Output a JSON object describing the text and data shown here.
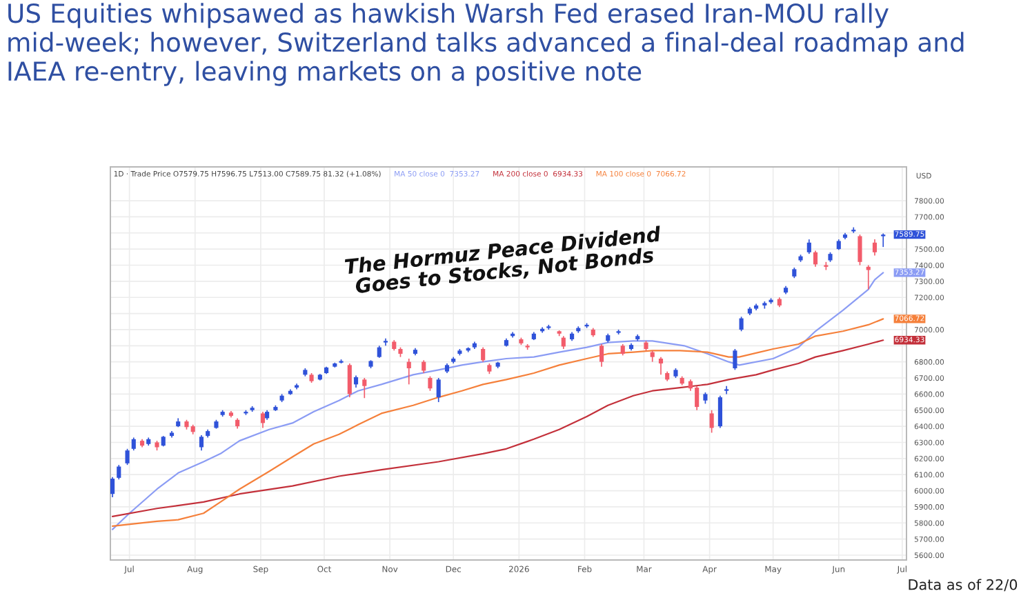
{
  "chart_data": {
    "type": "candlestick",
    "title": "US Equities whipsawed as hawkish Warsh Fed erased Iran-MOU rally mid-week; however, Switzerland talks advanced a final-deal roadmap and IAEA re-entry, leaving markets on a positive note",
    "ylabel": "USD",
    "x": [
      "2025-06-23",
      "2025-06-26",
      "2025-06-30",
      "2025-07-03",
      "2025-07-07",
      "2025-07-10",
      "2025-07-14",
      "2025-07-17",
      "2025-07-21",
      "2025-07-24",
      "2025-07-28",
      "2025-07-31",
      "2025-08-04",
      "2025-08-07",
      "2025-08-11",
      "2025-08-14",
      "2025-08-18",
      "2025-08-21",
      "2025-08-25",
      "2025-08-28",
      "2025-09-02",
      "2025-09-04",
      "2025-09-08",
      "2025-09-11",
      "2025-09-15",
      "2025-09-18",
      "2025-09-22",
      "2025-09-25",
      "2025-09-29",
      "2025-10-02",
      "2025-10-06",
      "2025-10-09",
      "2025-10-13",
      "2025-10-16",
      "2025-10-20",
      "2025-10-23",
      "2025-10-27",
      "2025-10-30",
      "2025-11-03",
      "2025-11-06",
      "2025-11-10",
      "2025-11-13",
      "2025-11-17",
      "2025-11-20",
      "2025-11-24",
      "2025-11-28",
      "2025-12-01",
      "2025-12-04",
      "2025-12-08",
      "2025-12-11",
      "2025-12-15",
      "2025-12-18",
      "2025-12-22",
      "2025-12-26",
      "2025-12-29",
      "2026-01-02",
      "2026-01-05",
      "2026-01-08",
      "2026-01-12",
      "2026-01-15",
      "2026-01-20",
      "2026-01-22",
      "2026-01-26",
      "2026-01-29",
      "2026-02-02",
      "2026-02-05",
      "2026-02-09",
      "2026-02-12",
      "2026-02-17",
      "2026-02-19",
      "2026-02-23",
      "2026-02-26",
      "2026-03-02",
      "2026-03-05",
      "2026-03-09",
      "2026-03-12",
      "2026-03-16",
      "2026-03-19",
      "2026-03-23",
      "2026-03-26",
      "2026-03-30",
      "2026-04-02",
      "2026-04-06",
      "2026-04-09",
      "2026-04-13",
      "2026-04-16",
      "2026-04-20",
      "2026-04-23",
      "2026-04-27",
      "2026-04-30",
      "2026-05-04",
      "2026-05-07",
      "2026-05-11",
      "2026-05-14",
      "2026-05-18",
      "2026-05-21",
      "2026-05-26",
      "2026-05-28",
      "2026-06-01",
      "2026-06-04",
      "2026-06-08",
      "2026-06-11",
      "2026-06-15",
      "2026-06-18",
      "2026-06-22"
    ],
    "ohlc": [
      [
        5980,
        6085,
        5960,
        6075
      ],
      [
        6080,
        6160,
        6070,
        6150
      ],
      [
        6170,
        6260,
        6160,
        6250
      ],
      [
        6260,
        6330,
        6250,
        6320
      ],
      [
        6310,
        6320,
        6270,
        6280
      ],
      [
        6290,
        6330,
        6280,
        6320
      ],
      [
        6300,
        6310,
        6250,
        6270
      ],
      [
        6280,
        6340,
        6275,
        6335
      ],
      [
        6340,
        6370,
        6330,
        6360
      ],
      [
        6400,
        6450,
        6395,
        6430
      ],
      [
        6430,
        6440,
        6380,
        6395
      ],
      [
        6400,
        6410,
        6350,
        6365
      ],
      [
        6270,
        6345,
        6250,
        6335
      ],
      [
        6340,
        6380,
        6330,
        6370
      ],
      [
        6390,
        6440,
        6385,
        6430
      ],
      [
        6470,
        6500,
        6460,
        6490
      ],
      [
        6485,
        6495,
        6455,
        6465
      ],
      [
        6440,
        6450,
        6385,
        6400
      ],
      [
        6480,
        6500,
        6470,
        6490
      ],
      [
        6500,
        6525,
        6490,
        6515
      ],
      [
        6480,
        6490,
        6390,
        6420
      ],
      [
        6450,
        6500,
        6440,
        6490
      ],
      [
        6500,
        6530,
        6495,
        6520
      ],
      [
        6560,
        6600,
        6550,
        6590
      ],
      [
        6600,
        6630,
        6595,
        6620
      ],
      [
        6640,
        6665,
        6630,
        6655
      ],
      [
        6720,
        6760,
        6710,
        6750
      ],
      [
        6720,
        6730,
        6670,
        6680
      ],
      [
        6690,
        6725,
        6685,
        6720
      ],
      [
        6730,
        6770,
        6725,
        6765
      ],
      [
        6770,
        6795,
        6765,
        6790
      ],
      [
        6795,
        6815,
        6790,
        6805
      ],
      [
        6780,
        6790,
        6580,
        6600
      ],
      [
        6660,
        6715,
        6640,
        6705
      ],
      [
        6690,
        6700,
        6575,
        6650
      ],
      [
        6770,
        6810,
        6760,
        6805
      ],
      [
        6830,
        6900,
        6825,
        6890
      ],
      [
        6920,
        6945,
        6900,
        6930
      ],
      [
        6925,
        6935,
        6870,
        6880
      ],
      [
        6880,
        6890,
        6830,
        6850
      ],
      [
        6800,
        6820,
        6660,
        6760
      ],
      [
        6850,
        6885,
        6840,
        6875
      ],
      [
        6800,
        6810,
        6730,
        6745
      ],
      [
        6700,
        6710,
        6620,
        6635
      ],
      [
        6580,
        6700,
        6550,
        6690
      ],
      [
        6740,
        6790,
        6730,
        6780
      ],
      [
        6800,
        6830,
        6790,
        6820
      ],
      [
        6850,
        6880,
        6840,
        6870
      ],
      [
        6870,
        6890,
        6860,
        6885
      ],
      [
        6890,
        6925,
        6880,
        6915
      ],
      [
        6880,
        6890,
        6800,
        6810
      ],
      [
        6780,
        6790,
        6725,
        6740
      ],
      [
        6770,
        6800,
        6760,
        6795
      ],
      [
        6900,
        6945,
        6895,
        6935
      ],
      [
        6960,
        6985,
        6950,
        6975
      ],
      [
        6940,
        6950,
        6905,
        6915
      ],
      [
        6900,
        6910,
        6875,
        6890
      ],
      [
        6940,
        6985,
        6935,
        6975
      ],
      [
        6990,
        7015,
        6980,
        7005
      ],
      [
        7010,
        7030,
        7000,
        7020
      ],
      [
        6990,
        6995,
        6960,
        6975
      ],
      [
        6950,
        6960,
        6880,
        6895
      ],
      [
        6940,
        6985,
        6930,
        6975
      ],
      [
        6990,
        7020,
        6980,
        7010
      ],
      [
        7020,
        7040,
        7010,
        7030
      ],
      [
        7000,
        7010,
        6955,
        6965
      ],
      [
        6900,
        6910,
        6770,
        6800
      ],
      [
        6930,
        6975,
        6920,
        6965
      ],
      [
        6980,
        7000,
        6970,
        6990
      ],
      [
        6900,
        6910,
        6840,
        6850
      ],
      [
        6880,
        6915,
        6870,
        6905
      ],
      [
        6940,
        6970,
        6930,
        6960
      ],
      [
        6920,
        6930,
        6870,
        6880
      ],
      [
        6860,
        6870,
        6800,
        6830
      ],
      [
        6820,
        6830,
        6720,
        6790
      ],
      [
        6730,
        6740,
        6680,
        6690
      ],
      [
        6710,
        6760,
        6700,
        6750
      ],
      [
        6700,
        6710,
        6655,
        6665
      ],
      [
        6680,
        6690,
        6620,
        6635
      ],
      [
        6640,
        6650,
        6500,
        6520
      ],
      [
        6560,
        6610,
        6540,
        6600
      ],
      [
        6480,
        6500,
        6360,
        6390
      ],
      [
        6400,
        6590,
        6390,
        6580
      ],
      [
        6620,
        6650,
        6600,
        6630
      ],
      [
        6760,
        6880,
        6750,
        6870
      ],
      [
        7000,
        7080,
        6990,
        7070
      ],
      [
        7100,
        7140,
        7090,
        7130
      ],
      [
        7130,
        7160,
        7120,
        7150
      ],
      [
        7150,
        7175,
        7130,
        7165
      ],
      [
        7170,
        7195,
        7160,
        7185
      ],
      [
        7190,
        7200,
        7140,
        7150
      ],
      [
        7230,
        7270,
        7220,
        7260
      ],
      [
        7330,
        7385,
        7320,
        7375
      ],
      [
        7430,
        7465,
        7420,
        7455
      ],
      [
        7480,
        7560,
        7470,
        7540
      ],
      [
        7480,
        7490,
        7390,
        7405
      ],
      [
        7400,
        7420,
        7370,
        7390
      ],
      [
        7430,
        7480,
        7420,
        7470
      ],
      [
        7500,
        7560,
        7495,
        7550
      ],
      [
        7570,
        7600,
        7560,
        7590
      ],
      [
        7610,
        7635,
        7600,
        7620
      ],
      [
        7580,
        7590,
        7400,
        7420
      ],
      [
        7390,
        7400,
        7250,
        7370
      ],
      [
        7540,
        7560,
        7460,
        7480
      ],
      [
        7579.75,
        7596.75,
        7513.0,
        7589.75
      ]
    ],
    "colors": [
      "#2f52d9",
      "#2f52d9",
      "#2f52d9",
      "#2f52d9",
      "#f25c6b",
      "#2f52d9",
      "#f25c6b",
      "#2f52d9",
      "#2f52d9",
      "#2f52d9",
      "#f25c6b",
      "#f25c6b",
      "#2f52d9",
      "#2f52d9",
      "#2f52d9",
      "#2f52d9",
      "#f25c6b",
      "#f25c6b",
      "#2f52d9",
      "#2f52d9",
      "#f25c6b",
      "#2f52d9",
      "#2f52d9",
      "#2f52d9",
      "#2f52d9",
      "#2f52d9",
      "#2f52d9",
      "#f25c6b",
      "#2f52d9",
      "#2f52d9",
      "#2f52d9",
      "#2f52d9",
      "#f25c6b",
      "#2f52d9",
      "#f25c6b",
      "#2f52d9",
      "#2f52d9",
      "#2f52d9",
      "#f25c6b",
      "#f25c6b",
      "#f25c6b",
      "#2f52d9",
      "#f25c6b",
      "#f25c6b",
      "#2f52d9",
      "#2f52d9",
      "#2f52d9",
      "#2f52d9",
      "#2f52d9",
      "#2f52d9",
      "#f25c6b",
      "#f25c6b",
      "#2f52d9",
      "#2f52d9",
      "#2f52d9",
      "#f25c6b",
      "#f25c6b",
      "#2f52d9",
      "#2f52d9",
      "#2f52d9",
      "#f25c6b",
      "#f25c6b",
      "#2f52d9",
      "#2f52d9",
      "#2f52d9",
      "#f25c6b",
      "#f25c6b",
      "#2f52d9",
      "#2f52d9",
      "#f25c6b",
      "#2f52d9",
      "#2f52d9",
      "#f25c6b",
      "#f25c6b",
      "#f25c6b",
      "#f25c6b",
      "#2f52d9",
      "#f25c6b",
      "#f25c6b",
      "#f25c6b",
      "#2f52d9",
      "#f25c6b",
      "#2f52d9",
      "#2f52d9",
      "#2f52d9",
      "#2f52d9",
      "#2f52d9",
      "#2f52d9",
      "#2f52d9",
      "#2f52d9",
      "#f25c6b",
      "#2f52d9",
      "#2f52d9",
      "#2f52d9",
      "#2f52d9",
      "#f25c6b",
      "#f25c6b",
      "#2f52d9",
      "#2f52d9",
      "#2f52d9",
      "#2f52d9",
      "#f25c6b",
      "#f25c6b",
      "#f25c6b",
      "#2f52d9"
    ],
    "value_labels": [
      null,
      null,
      null,
      null,
      null,
      null,
      null,
      null,
      null,
      null,
      null,
      null,
      null,
      null,
      null,
      null,
      null,
      null,
      null,
      null,
      null,
      null,
      null,
      null,
      null,
      null,
      null,
      null,
      null,
      null,
      null,
      null,
      null,
      null,
      null,
      null,
      null,
      null,
      null,
      null,
      null,
      null,
      null,
      null,
      null,
      null,
      null,
      null,
      null,
      null,
      null,
      null,
      null,
      null,
      null,
      null,
      null,
      null,
      null,
      null,
      null,
      null,
      null,
      null,
      null,
      null,
      null,
      null,
      null,
      null,
      null,
      null,
      null,
      null,
      null,
      null,
      null,
      null,
      null,
      null,
      null,
      null,
      null,
      null,
      null,
      null,
      null,
      null,
      null,
      null,
      null,
      null,
      null,
      null,
      null,
      null,
      null,
      null,
      null,
      null,
      null,
      null,
      null,
      null,
      "7589.75"
    ],
    "series": [
      {
        "name": "MA 50 close 0",
        "type": "line",
        "color": "#8b9cf4",
        "x": [
          "2025-06-23",
          "2025-07-01",
          "2025-07-14",
          "2025-07-24",
          "2025-08-05",
          "2025-08-13",
          "2025-08-22",
          "2025-09-05",
          "2025-09-16",
          "2025-09-26",
          "2025-10-08",
          "2025-10-17",
          "2025-10-28",
          "2025-11-12",
          "2025-11-24",
          "2025-12-05",
          "2025-12-15",
          "2025-12-26",
          "2026-01-08",
          "2026-01-20",
          "2026-02-02",
          "2026-02-12",
          "2026-02-24",
          "2026-03-05",
          "2026-03-20",
          "2026-03-31",
          "2026-04-10",
          "2026-04-15",
          "2026-05-01",
          "2026-05-13",
          "2026-05-21",
          "2026-06-03",
          "2026-06-15",
          "2026-06-18",
          "2026-06-22"
        ],
        "values": [
          5760,
          5860,
          6010,
          6110,
          6180,
          6230,
          6310,
          6380,
          6420,
          6490,
          6560,
          6620,
          6660,
          6720,
          6750,
          6780,
          6800,
          6820,
          6830,
          6860,
          6890,
          6920,
          6930,
          6930,
          6900,
          6850,
          6800,
          6780,
          6820,
          6890,
          6990,
          7120,
          7250,
          7310,
          7353.27
        ],
        "value_labels": [
          null,
          null,
          null,
          null,
          null,
          null,
          null,
          null,
          null,
          null,
          null,
          null,
          null,
          null,
          null,
          null,
          null,
          null,
          null,
          null,
          null,
          null,
          null,
          null,
          null,
          null,
          null,
          null,
          null,
          null,
          null,
          null,
          null,
          null,
          "7353.27"
        ]
      },
      {
        "name": "MA 200 close 0",
        "type": "line",
        "color": "#c3303a",
        "x": [
          "2025-06-23",
          "2025-07-14",
          "2025-08-05",
          "2025-08-22",
          "2025-09-16",
          "2025-10-08",
          "2025-10-28",
          "2025-11-24",
          "2025-12-15",
          "2025-12-26",
          "2026-01-08",
          "2026-01-20",
          "2026-02-02",
          "2026-02-12",
          "2026-02-24",
          "2026-03-05",
          "2026-03-18",
          "2026-03-31",
          "2026-04-10",
          "2026-04-23",
          "2026-05-01",
          "2026-05-13",
          "2026-05-21",
          "2026-06-03",
          "2026-06-15",
          "2026-06-22"
        ],
        "values": [
          5840,
          5890,
          5930,
          5980,
          6030,
          6090,
          6130,
          6180,
          6230,
          6260,
          6320,
          6380,
          6460,
          6530,
          6590,
          6620,
          6640,
          6660,
          6690,
          6720,
          6750,
          6790,
          6830,
          6870,
          6910,
          6934.33
        ],
        "value_labels": [
          null,
          null,
          null,
          null,
          null,
          null,
          null,
          null,
          null,
          null,
          null,
          null,
          null,
          null,
          null,
          null,
          null,
          null,
          null,
          null,
          null,
          null,
          null,
          null,
          null,
          "6934.33"
        ]
      },
      {
        "name": "MA 100 close 0",
        "type": "line",
        "color": "#f5803b",
        "x": [
          "2025-06-23",
          "2025-07-14",
          "2025-07-24",
          "2025-08-05",
          "2025-08-13",
          "2025-08-22",
          "2025-09-05",
          "2025-09-16",
          "2025-09-26",
          "2025-10-08",
          "2025-10-17",
          "2025-10-28",
          "2025-11-12",
          "2025-11-24",
          "2025-12-05",
          "2025-12-15",
          "2025-12-26",
          "2026-01-08",
          "2026-01-20",
          "2026-02-02",
          "2026-02-12",
          "2026-02-24",
          "2026-03-05",
          "2026-03-18",
          "2026-03-31",
          "2026-04-10",
          "2026-04-15",
          "2026-05-01",
          "2026-05-13",
          "2026-05-21",
          "2026-06-03",
          "2026-06-15",
          "2026-06-22"
        ],
        "values": [
          5780,
          5810,
          5820,
          5860,
          5930,
          6010,
          6120,
          6210,
          6290,
          6350,
          6410,
          6480,
          6530,
          6580,
          6620,
          6660,
          6690,
          6730,
          6780,
          6820,
          6850,
          6860,
          6870,
          6870,
          6860,
          6830,
          6830,
          6880,
          6910,
          6960,
          6990,
          7030,
          7066.72
        ],
        "value_labels": [
          null,
          null,
          null,
          null,
          null,
          null,
          null,
          null,
          null,
          null,
          null,
          null,
          null,
          null,
          null,
          null,
          null,
          null,
          null,
          null,
          null,
          null,
          null,
          null,
          null,
          null,
          null,
          null,
          null,
          null,
          null,
          null,
          "7066.72"
        ]
      }
    ],
    "xlim": [
      "2025-06-22",
      "2026-07-03"
    ],
    "xticks": [
      {
        "value": "2025-07-01",
        "label": "Jul"
      },
      {
        "value": "2025-08-01",
        "label": "Aug"
      },
      {
        "value": "2025-09-01",
        "label": "Sep"
      },
      {
        "value": "2025-10-01",
        "label": "Oct"
      },
      {
        "value": "2025-11-01",
        "label": "Nov"
      },
      {
        "value": "2025-12-01",
        "label": "Dec"
      },
      {
        "value": "2026-01-01",
        "label": "2026"
      },
      {
        "value": "2026-02-01",
        "label": "Feb"
      },
      {
        "value": "2026-03-01",
        "label": "Mar"
      },
      {
        "value": "2026-04-01",
        "label": "Apr"
      },
      {
        "value": "2026-05-01",
        "label": "May"
      },
      {
        "value": "2026-06-01",
        "label": "Jun"
      },
      {
        "value": "2026-07-01",
        "label": "Jul"
      }
    ],
    "ylim": [
      5570,
      8010
    ],
    "yticks": [
      {
        "value": 5600,
        "label": "5600.00"
      },
      {
        "value": 5700,
        "label": "5700.00"
      },
      {
        "value": 5800,
        "label": "5800.00"
      },
      {
        "value": 5900,
        "label": "5900.00"
      },
      {
        "value": 6000,
        "label": "6000.00"
      },
      {
        "value": 6100,
        "label": "6100.00"
      },
      {
        "value": 6200,
        "label": "6200.00"
      },
      {
        "value": 6300,
        "label": "6300.00"
      },
      {
        "value": 6400,
        "label": "6400.00"
      },
      {
        "value": 6500,
        "label": "6500.00"
      },
      {
        "value": 6600,
        "label": "6600.00"
      },
      {
        "value": 6700,
        "label": "6700.00"
      },
      {
        "value": 6800,
        "label": "6800.00"
      },
      {
        "value": 6900,
        "label": null
      },
      {
        "value": 7000,
        "label": "7000.00"
      },
      {
        "value": 7100,
        "label": null
      },
      {
        "value": 7200,
        "label": "7200.00"
      },
      {
        "value": 7300,
        "label": "7300.00"
      },
      {
        "value": 7400,
        "label": "7400.00"
      },
      {
        "value": 7500,
        "label": "7500.00"
      },
      {
        "value": 7600,
        "label": null
      },
      {
        "value": 7700,
        "label": "7700.00"
      },
      {
        "value": 7800,
        "label": "7800.00"
      }
    ],
    "grid": true,
    "annotations": [
      "1D · Trade Price O7579.75 H7596.75 L7513.00 C7589.75 81.32 (+1.08%)",
      "The Hormuz Peace Dividend\nGoes to Stocks, Not Bonds",
      "Data as of 22/0"
    ]
  }
}
